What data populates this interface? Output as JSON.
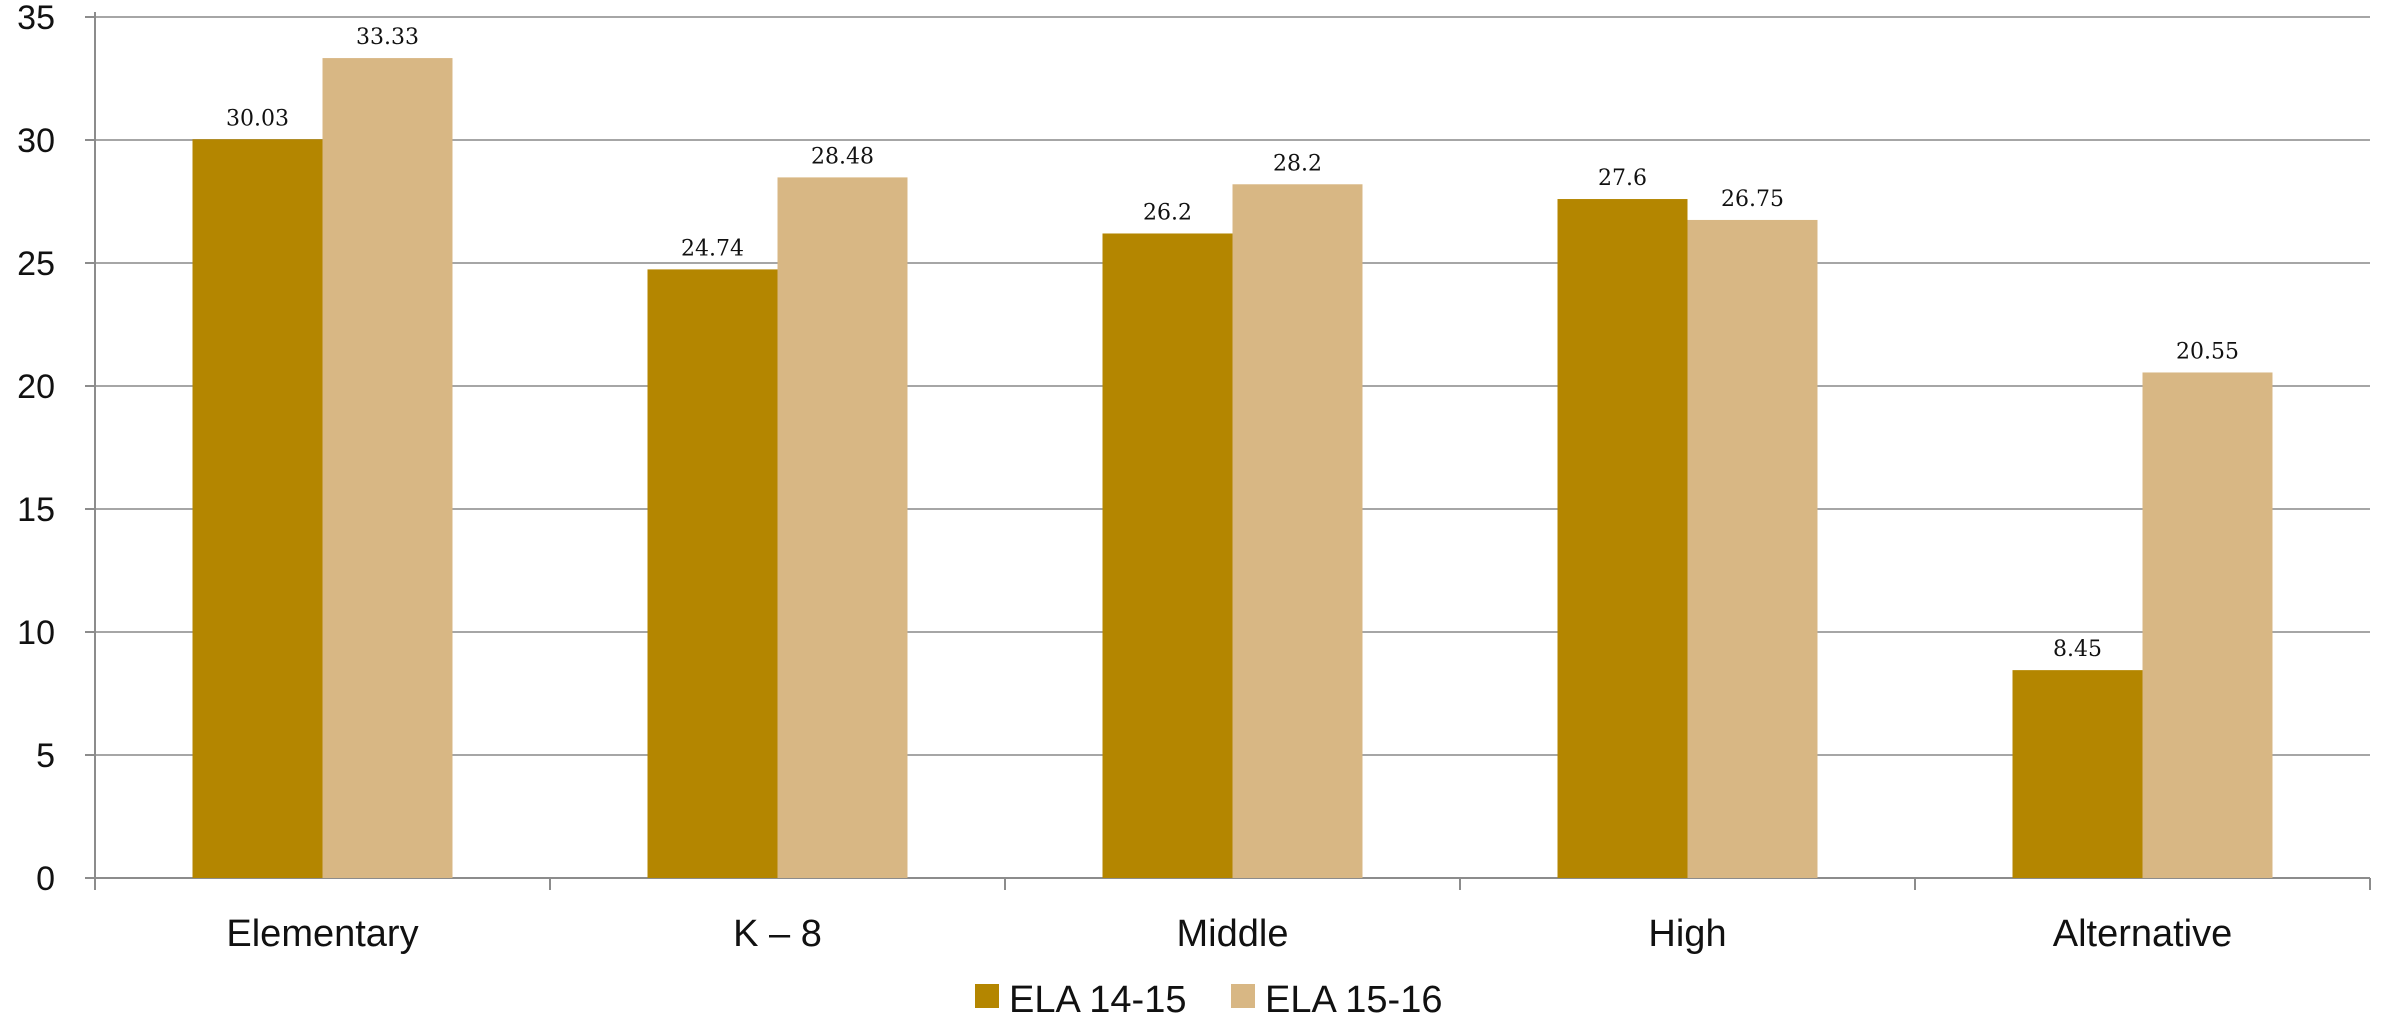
{
  "chart_data": {
    "type": "bar",
    "categories": [
      "Elementary",
      "K – 8",
      "Middle",
      "High",
      "Alternative"
    ],
    "series": [
      {
        "name": "ELA 14-15",
        "values": [
          30.03,
          24.74,
          26.2,
          27.6,
          8.45
        ],
        "color": "#B48600"
      },
      {
        "name": "ELA 15-16",
        "values": [
          33.33,
          28.48,
          28.2,
          26.75,
          20.55
        ],
        "color": "#D8B784"
      }
    ],
    "data_labels": [
      [
        "30.03",
        "24.74",
        "26.2",
        "27.6",
        "8.45"
      ],
      [
        "33.33",
        "28.48",
        "28.2",
        "26.75",
        "20.55"
      ]
    ],
    "yticks": [
      "0",
      "5",
      "10",
      "15",
      "20",
      "25",
      "30",
      "35"
    ],
    "ylim": [
      0,
      35
    ],
    "grid": true,
    "legend": "bottom-center",
    "title": "",
    "xlabel": "",
    "ylabel": ""
  },
  "colors": {
    "grid": "#A6A6A6",
    "axis": "#8C8C8C",
    "text": "#111111"
  }
}
